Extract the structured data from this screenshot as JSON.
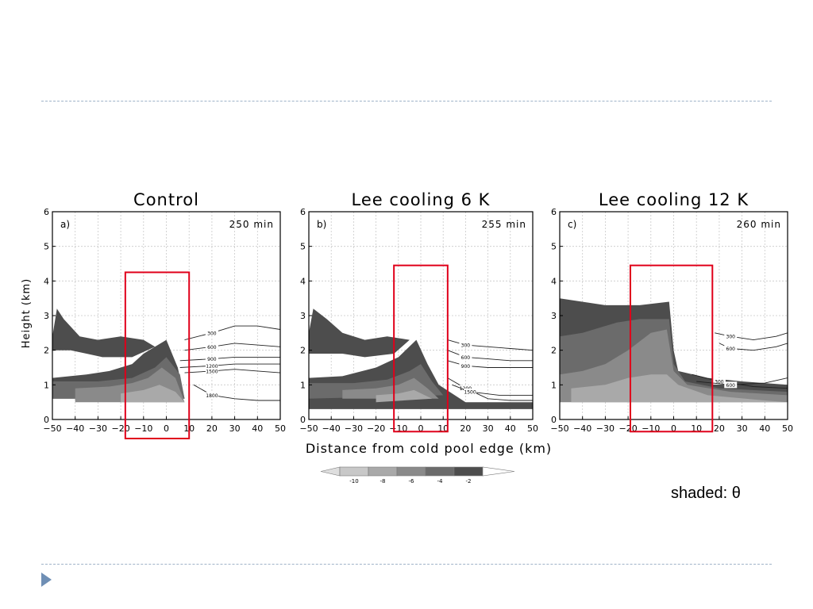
{
  "note": "shaded: θ",
  "colorbar": {
    "labels": [
      "-10",
      "-8",
      "-6",
      "-4",
      "-2"
    ],
    "colors": [
      "#c8c8c8",
      "#a9a9a9",
      "#8a8a8a",
      "#6b6b6b",
      "#4d4d4d"
    ]
  },
  "shared_axes": {
    "ylabel": "Height (km)",
    "xlabel": "Distance from cold pool edge (km)",
    "xlim": [
      -50,
      50
    ],
    "ylim": [
      0,
      6
    ],
    "xticks": [
      "−50",
      "−40",
      "−30",
      "−20",
      "−10",
      "0",
      "10",
      "20",
      "30",
      "40",
      "50"
    ],
    "yticks": [
      "0",
      "1",
      "2",
      "3",
      "4",
      "5",
      "6"
    ]
  },
  "chart_data": [
    {
      "type": "heatmap",
      "title": "Control",
      "panel": "a)",
      "time": "250 min",
      "highlight_box": {
        "x": [
          -18,
          10
        ],
        "y": [
          -0.55,
          4.25
        ]
      },
      "shading": [
        {
          "level": "-2",
          "color": "#4d4d4d",
          "polygon": [
            [
              -50,
              1.2
            ],
            [
              -35,
              1.3
            ],
            [
              -25,
              1.4
            ],
            [
              -15,
              1.6
            ],
            [
              -10,
              1.9
            ],
            [
              -5,
              2.1
            ],
            [
              0,
              2.3
            ],
            [
              5,
              1.5
            ],
            [
              8,
              0.6
            ],
            [
              -50,
              0.6
            ]
          ]
        },
        {
          "level": "-2",
          "color": "#4d4d4d",
          "polygon": [
            [
              -50,
              2.4
            ],
            [
              -48,
              3.2
            ],
            [
              -45,
              2.9
            ],
            [
              -38,
              2.4
            ],
            [
              -30,
              2.3
            ],
            [
              -20,
              2.4
            ],
            [
              -10,
              2.3
            ],
            [
              -5,
              2.1
            ],
            [
              -15,
              1.8
            ],
            [
              -28,
              1.8
            ],
            [
              -35,
              1.9
            ],
            [
              -42,
              2.0
            ],
            [
              -50,
              2.0
            ]
          ]
        },
        {
          "level": "-4",
          "color": "#6b6b6b",
          "polygon": [
            [
              -50,
              1.1
            ],
            [
              -30,
              1.1
            ],
            [
              -15,
              1.2
            ],
            [
              -5,
              1.5
            ],
            [
              0,
              1.8
            ],
            [
              6,
              1.3
            ],
            [
              8,
              0.6
            ],
            [
              -50,
              0.6
            ]
          ]
        },
        {
          "level": "-6",
          "color": "#8a8a8a",
          "polygon": [
            [
              -40,
              0.9
            ],
            [
              -25,
              0.95
            ],
            [
              -15,
              1.05
            ],
            [
              -8,
              1.2
            ],
            [
              -2,
              1.5
            ],
            [
              4,
              1.2
            ],
            [
              8,
              0.5
            ],
            [
              -40,
              0.5
            ]
          ]
        },
        {
          "level": "-8",
          "color": "#a9a9a9",
          "polygon": [
            [
              -20,
              0.75
            ],
            [
              -10,
              0.85
            ],
            [
              -3,
              1.0
            ],
            [
              4,
              0.8
            ],
            [
              8,
              0.5
            ],
            [
              -20,
              0.5
            ]
          ]
        }
      ],
      "contours": [
        {
          "label": "300",
          "points": [
            [
              8,
              2.3
            ],
            [
              20,
              2.5
            ],
            [
              30,
              2.7
            ],
            [
              40,
              2.7
            ],
            [
              50,
              2.6
            ]
          ]
        },
        {
          "label": "600",
          "points": [
            [
              8,
              2.0
            ],
            [
              20,
              2.1
            ],
            [
              30,
              2.2
            ],
            [
              40,
              2.15
            ],
            [
              50,
              2.1
            ]
          ]
        },
        {
          "label": "900",
          "points": [
            [
              6,
              1.7
            ],
            [
              20,
              1.75
            ],
            [
              30,
              1.8
            ],
            [
              40,
              1.8
            ],
            [
              50,
              1.8
            ]
          ]
        },
        {
          "label": "1200",
          "points": [
            [
              6,
              1.5
            ],
            [
              20,
              1.55
            ],
            [
              30,
              1.6
            ],
            [
              40,
              1.6
            ],
            [
              50,
              1.6
            ]
          ]
        },
        {
          "label": "1500",
          "points": [
            [
              8,
              1.35
            ],
            [
              20,
              1.4
            ],
            [
              30,
              1.45
            ],
            [
              40,
              1.4
            ],
            [
              50,
              1.35
            ]
          ]
        },
        {
          "label": "1800",
          "points": [
            [
              12,
              1.0
            ],
            [
              20,
              0.7
            ],
            [
              30,
              0.6
            ],
            [
              40,
              0.55
            ],
            [
              50,
              0.55
            ]
          ]
        }
      ]
    },
    {
      "type": "heatmap",
      "title": "Lee cooling 6 K",
      "panel": "b)",
      "time": "255 min",
      "highlight_box": {
        "x": [
          -12,
          12
        ],
        "y": [
          -0.35,
          4.45
        ]
      },
      "shading": [
        {
          "level": "-2",
          "color": "#4d4d4d",
          "polygon": [
            [
              -50,
              1.2
            ],
            [
              -35,
              1.25
            ],
            [
              -20,
              1.5
            ],
            [
              -10,
              1.8
            ],
            [
              -2,
              2.3
            ],
            [
              3,
              1.6
            ],
            [
              8,
              1.0
            ],
            [
              20,
              0.5
            ],
            [
              50,
              0.5
            ],
            [
              50,
              0.3
            ],
            [
              -50,
              0.3
            ]
          ]
        },
        {
          "level": "-2",
          "color": "#4d4d4d",
          "polygon": [
            [
              -50,
              2.5
            ],
            [
              -48,
              3.2
            ],
            [
              -42,
              2.9
            ],
            [
              -35,
              2.5
            ],
            [
              -25,
              2.3
            ],
            [
              -15,
              2.4
            ],
            [
              -5,
              2.3
            ],
            [
              -12,
              1.9
            ],
            [
              -25,
              1.8
            ],
            [
              -35,
              1.9
            ],
            [
              -45,
              1.9
            ],
            [
              -50,
              1.9
            ]
          ]
        },
        {
          "level": "-4",
          "color": "#6b6b6b",
          "polygon": [
            [
              -50,
              1.05
            ],
            [
              -30,
              1.05
            ],
            [
              -15,
              1.15
            ],
            [
              -5,
              1.4
            ],
            [
              0,
              1.6
            ],
            [
              5,
              1.1
            ],
            [
              10,
              0.7
            ],
            [
              -50,
              0.6
            ]
          ]
        },
        {
          "level": "-6",
          "color": "#8a8a8a",
          "polygon": [
            [
              -35,
              0.85
            ],
            [
              -20,
              0.9
            ],
            [
              -10,
              1.0
            ],
            [
              -3,
              1.2
            ],
            [
              3,
              0.9
            ],
            [
              8,
              0.6
            ],
            [
              -35,
              0.6
            ]
          ]
        },
        {
          "level": "-8",
          "color": "#a9a9a9",
          "polygon": [
            [
              -20,
              0.7
            ],
            [
              -10,
              0.75
            ],
            [
              -3,
              0.85
            ],
            [
              5,
              0.6
            ],
            [
              -20,
              0.5
            ]
          ]
        }
      ],
      "contours": [
        {
          "label": "300",
          "points": [
            [
              12,
              2.3
            ],
            [
              20,
              2.15
            ],
            [
              30,
              2.1
            ],
            [
              40,
              2.05
            ],
            [
              50,
              2.0
            ]
          ]
        },
        {
          "label": "600",
          "points": [
            [
              12,
              2.0
            ],
            [
              20,
              1.8
            ],
            [
              30,
              1.75
            ],
            [
              40,
              1.7
            ],
            [
              50,
              1.7
            ]
          ]
        },
        {
          "label": "900",
          "points": [
            [
              12,
              1.7
            ],
            [
              20,
              1.55
            ],
            [
              30,
              1.5
            ],
            [
              40,
              1.5
            ],
            [
              50,
              1.5
            ]
          ]
        },
        {
          "label": "1200",
          "points": [
            [
              12,
              1.2
            ],
            [
              20,
              0.9
            ],
            [
              30,
              0.6
            ],
            [
              40,
              0.55
            ],
            [
              50,
              0.55
            ]
          ]
        },
        {
          "label": "1500",
          "points": [
            [
              14,
              1.0
            ],
            [
              22,
              0.8
            ],
            [
              35,
              0.7
            ],
            [
              50,
              0.7
            ]
          ]
        }
      ]
    },
    {
      "type": "heatmap",
      "title": "Lee cooling 12 K",
      "panel": "c)",
      "time": "260 min",
      "highlight_box": {
        "x": [
          -19,
          17
        ],
        "y": [
          -0.35,
          4.45
        ]
      },
      "shading": [
        {
          "level": "-2",
          "color": "#4d4d4d",
          "polygon": [
            [
              -50,
              3.5
            ],
            [
              -30,
              3.3
            ],
            [
              -15,
              3.3
            ],
            [
              -2,
              3.4
            ],
            [
              0,
              2.0
            ],
            [
              2,
              1.4
            ],
            [
              15,
              1.2
            ],
            [
              30,
              1.1
            ],
            [
              50,
              1.0
            ],
            [
              50,
              0.6
            ],
            [
              -50,
              0.6
            ]
          ]
        },
        {
          "level": "-4",
          "color": "#6b6b6b",
          "polygon": [
            [
              -50,
              2.4
            ],
            [
              -40,
              2.5
            ],
            [
              -25,
              2.8
            ],
            [
              -15,
              2.9
            ],
            [
              -2,
              2.9
            ],
            [
              0,
              1.6
            ],
            [
              5,
              1.1
            ],
            [
              20,
              0.9
            ],
            [
              50,
              0.8
            ],
            [
              50,
              0.6
            ],
            [
              -50,
              0.6
            ]
          ]
        },
        {
          "level": "-6",
          "color": "#8a8a8a",
          "polygon": [
            [
              -50,
              1.3
            ],
            [
              -40,
              1.4
            ],
            [
              -30,
              1.6
            ],
            [
              -20,
              2.0
            ],
            [
              -10,
              2.5
            ],
            [
              -3,
              2.6
            ],
            [
              0,
              1.4
            ],
            [
              6,
              1.0
            ],
            [
              25,
              0.8
            ],
            [
              50,
              0.7
            ],
            [
              50,
              0.5
            ],
            [
              -50,
              0.5
            ]
          ]
        },
        {
          "level": "-8",
          "color": "#a9a9a9",
          "polygon": [
            [
              -45,
              0.9
            ],
            [
              -30,
              1.0
            ],
            [
              -20,
              1.2
            ],
            [
              -10,
              1.3
            ],
            [
              -3,
              1.3
            ],
            [
              2,
              1.0
            ],
            [
              15,
              0.7
            ],
            [
              40,
              0.55
            ],
            [
              50,
              0.5
            ],
            [
              -45,
              0.5
            ]
          ]
        }
      ],
      "contours": [
        {
          "label": "300",
          "points": [
            [
              18,
              2.5
            ],
            [
              25,
              2.4
            ],
            [
              35,
              2.3
            ],
            [
              45,
              2.4
            ],
            [
              50,
              2.5
            ]
          ]
        },
        {
          "label": "600",
          "points": [
            [
              20,
              2.2
            ],
            [
              25,
              2.05
            ],
            [
              35,
              2.0
            ],
            [
              45,
              2.1
            ],
            [
              50,
              2.2
            ]
          ]
        },
        {
          "label": "300",
          "points": [
            [
              8,
              1.3
            ],
            [
              20,
              1.1
            ],
            [
              35,
              0.95
            ],
            [
              50,
              0.9
            ]
          ]
        },
        {
          "label": "600",
          "points": [
            [
              10,
              1.1
            ],
            [
              25,
              1.0
            ],
            [
              40,
              1.05
            ],
            [
              50,
              1.2
            ]
          ]
        }
      ]
    }
  ]
}
